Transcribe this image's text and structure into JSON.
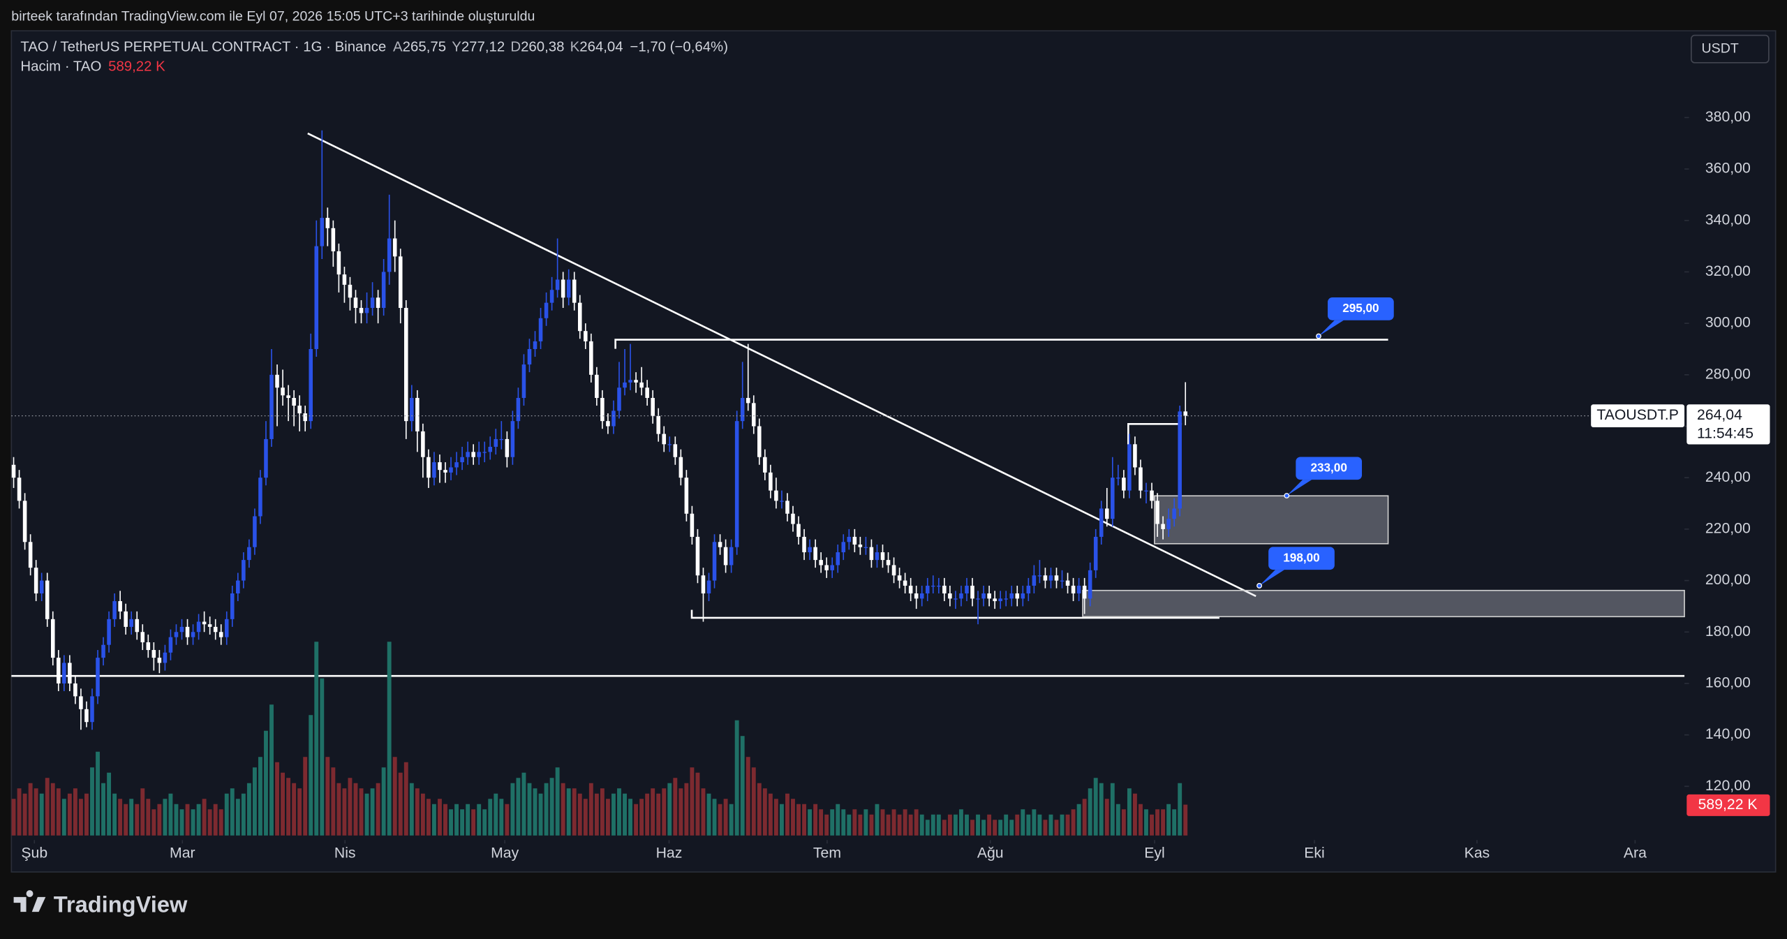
{
  "header": {
    "credit": "birteek tarafından TradingView.com ile Eyl 07, 2026 15:05 UTC+3 tarihinde oluşturuldu",
    "symbol": "TAO / TetherUS PERPETUAL CONTRACT · 1G · Binance",
    "ohlc": [
      {
        "key": "A",
        "value": "265,75"
      },
      {
        "key": "Y",
        "value": "277,12"
      },
      {
        "key": "D",
        "value": "260,38"
      },
      {
        "key": "K",
        "value": "264,04"
      }
    ],
    "change": "−1,70 (−0,64%)",
    "volume_title": "Hacim · TAO",
    "currency": "USDT",
    "brand": "TradingView"
  },
  "chart_data": {
    "type": "candlestick",
    "up_color": "#2a52e8",
    "down_color": "#ffffff",
    "volume_up_color": "#1f7066",
    "volume_down_color": "#7d2a30",
    "grid": false,
    "ylim": [
      100,
      400
    ],
    "yticks": [
      {
        "value": 120,
        "label": "120,00"
      },
      {
        "value": 140,
        "label": "140,00"
      },
      {
        "value": 160,
        "label": "160,00"
      },
      {
        "value": 180,
        "label": "180,00"
      },
      {
        "value": 200,
        "label": "200,00"
      },
      {
        "value": 220,
        "label": "220,00"
      },
      {
        "value": 240,
        "label": "240,00"
      },
      {
        "value": 260,
        "label": "260,00"
      },
      {
        "value": 280,
        "label": "280,00"
      },
      {
        "value": 300,
        "label": "300,00"
      },
      {
        "value": 320,
        "label": "320,00"
      },
      {
        "value": 340,
        "label": "340,00"
      },
      {
        "value": 360,
        "label": "360,00"
      },
      {
        "value": 380,
        "label": "380,00"
      }
    ],
    "xlim": [
      -0.4,
      298
    ],
    "xticks": [
      {
        "value": 3.7,
        "label": "Şub"
      },
      {
        "value": 30.1,
        "label": "Mar"
      },
      {
        "value": 59.1,
        "label": "Nis"
      },
      {
        "value": 87.6,
        "label": "May"
      },
      {
        "value": 116.9,
        "label": "Haz"
      },
      {
        "value": 145.1,
        "label": "Tem"
      },
      {
        "value": 174.2,
        "label": "Ağu"
      },
      {
        "value": 203.5,
        "label": "Eyl"
      },
      {
        "value": 232,
        "label": "Eki"
      },
      {
        "value": 261,
        "label": "Kas"
      },
      {
        "value": 289.2,
        "label": "Ara"
      }
    ],
    "symbol_tag": "TAOUSDT.P",
    "last_price_label": "264,04",
    "countdown": "11:54:45",
    "volume_label": "589,22 K",
    "callouts": [
      {
        "value": 295,
        "label": "295,00"
      },
      {
        "value": 233,
        "label": "233,00"
      },
      {
        "value": 198,
        "label": "198,00"
      }
    ],
    "ohlc": [
      [
        245,
        248,
        236,
        240
      ],
      [
        240,
        243,
        228,
        231
      ],
      [
        231,
        234,
        212,
        215
      ],
      [
        215,
        218,
        202,
        205
      ],
      [
        205,
        208,
        192,
        195
      ],
      [
        195,
        203,
        192,
        200
      ],
      [
        200,
        203,
        182,
        185
      ],
      [
        185,
        188,
        167,
        170
      ],
      [
        170,
        173,
        157,
        160
      ],
      [
        160,
        171,
        157,
        168
      ],
      [
        168,
        171,
        157,
        160
      ],
      [
        160,
        163,
        152,
        155
      ],
      [
        155,
        158,
        142,
        150
      ],
      [
        150,
        153,
        143,
        145
      ],
      [
        145,
        158,
        142,
        155
      ],
      [
        155,
        173,
        152,
        170
      ],
      [
        170,
        178,
        167,
        175
      ],
      [
        175,
        188,
        172,
        185
      ],
      [
        185,
        195,
        182,
        192
      ],
      [
        192,
        196,
        185,
        188
      ],
      [
        188,
        191,
        179,
        182
      ],
      [
        182,
        188,
        179,
        185
      ],
      [
        185,
        188,
        177,
        180
      ],
      [
        180,
        183,
        173,
        176
      ],
      [
        176,
        179,
        170,
        173
      ],
      [
        173,
        176,
        165,
        170
      ],
      [
        170,
        173,
        164,
        168
      ],
      [
        168,
        175,
        165,
        172
      ],
      [
        172,
        181,
        169,
        178
      ],
      [
        178,
        183,
        175,
        180
      ],
      [
        180,
        185,
        177,
        182
      ],
      [
        182,
        185,
        175,
        178
      ],
      [
        178,
        183,
        175,
        180
      ],
      [
        180,
        187,
        177,
        184
      ],
      [
        184,
        188,
        180,
        183
      ],
      [
        183,
        186,
        179,
        182
      ],
      [
        182,
        185,
        177,
        180
      ],
      [
        180,
        183,
        175,
        178
      ],
      [
        178,
        188,
        175,
        185
      ],
      [
        185,
        198,
        182,
        195
      ],
      [
        195,
        203,
        192,
        200
      ],
      [
        200,
        211,
        197,
        208
      ],
      [
        208,
        216,
        205,
        213
      ],
      [
        213,
        228,
        210,
        225
      ],
      [
        225,
        243,
        222,
        240
      ],
      [
        240,
        262,
        237,
        255
      ],
      [
        255,
        290,
        252,
        280
      ],
      [
        280,
        284,
        260,
        275
      ],
      [
        275,
        282,
        268,
        272
      ],
      [
        272,
        276,
        262,
        271
      ],
      [
        271,
        274,
        260,
        268
      ],
      [
        268,
        272,
        258,
        265
      ],
      [
        265,
        268,
        258,
        262
      ],
      [
        262,
        296,
        259,
        290
      ],
      [
        290,
        340,
        287,
        330
      ],
      [
        330,
        375,
        325,
        341
      ],
      [
        341,
        345,
        330,
        337
      ],
      [
        337,
        340,
        322,
        328
      ],
      [
        328,
        331,
        312,
        319
      ],
      [
        319,
        322,
        308,
        315
      ],
      [
        315,
        318,
        305,
        310
      ],
      [
        310,
        313,
        300,
        306
      ],
      [
        306,
        309,
        300,
        304
      ],
      [
        304,
        312,
        300,
        306
      ],
      [
        306,
        316,
        303,
        310
      ],
      [
        310,
        313,
        300,
        306
      ],
      [
        306,
        325,
        303,
        320
      ],
      [
        320,
        350,
        315,
        333
      ],
      [
        333,
        340,
        320,
        326
      ],
      [
        326,
        329,
        300,
        306
      ],
      [
        306,
        309,
        255,
        262
      ],
      [
        262,
        276,
        258,
        271
      ],
      [
        271,
        274,
        250,
        258
      ],
      [
        258,
        261,
        240,
        248
      ],
      [
        248,
        251,
        236,
        240
      ],
      [
        240,
        250,
        237,
        246
      ],
      [
        246,
        249,
        238,
        243
      ],
      [
        243,
        246,
        238,
        242
      ],
      [
        242,
        248,
        239,
        244
      ],
      [
        244,
        250,
        241,
        246
      ],
      [
        246,
        252,
        243,
        248
      ],
      [
        248,
        254,
        245,
        250
      ],
      [
        250,
        253,
        245,
        248
      ],
      [
        248,
        254,
        245,
        250
      ],
      [
        250,
        254,
        246,
        250
      ],
      [
        250,
        256,
        247,
        252
      ],
      [
        252,
        259,
        249,
        255
      ],
      [
        255,
        262,
        251,
        255
      ],
      [
        255,
        258,
        244,
        248
      ],
      [
        248,
        266,
        245,
        262
      ],
      [
        262,
        275,
        259,
        271
      ],
      [
        271,
        288,
        268,
        284
      ],
      [
        284,
        294,
        281,
        290
      ],
      [
        290,
        297,
        287,
        293
      ],
      [
        293,
        306,
        290,
        302
      ],
      [
        302,
        312,
        299,
        308
      ],
      [
        308,
        318,
        305,
        313
      ],
      [
        313,
        333,
        310,
        317
      ],
      [
        317,
        320,
        306,
        310
      ],
      [
        310,
        321,
        307,
        317
      ],
      [
        317,
        320,
        305,
        308
      ],
      [
        308,
        311,
        294,
        297
      ],
      [
        297,
        300,
        290,
        293
      ],
      [
        293,
        296,
        277,
        280
      ],
      [
        280,
        283,
        268,
        271
      ],
      [
        271,
        274,
        259,
        262
      ],
      [
        262,
        265,
        257,
        260
      ],
      [
        260,
        270,
        257,
        266
      ],
      [
        266,
        285,
        263,
        275
      ],
      [
        275,
        290,
        272,
        277
      ],
      [
        277,
        292,
        274,
        278
      ],
      [
        278,
        281,
        273,
        277
      ],
      [
        277,
        283,
        272,
        275
      ],
      [
        275,
        278,
        268,
        271
      ],
      [
        271,
        274,
        261,
        264
      ],
      [
        264,
        267,
        254,
        257
      ],
      [
        257,
        260,
        250,
        253
      ],
      [
        253,
        256,
        250,
        253
      ],
      [
        253,
        256,
        245,
        248
      ],
      [
        248,
        251,
        237,
        240
      ],
      [
        240,
        243,
        223,
        226
      ],
      [
        226,
        229,
        214,
        217
      ],
      [
        217,
        220,
        199,
        202
      ],
      [
        202,
        205,
        184,
        195
      ],
      [
        195,
        203,
        192,
        200
      ],
      [
        200,
        218,
        197,
        215
      ],
      [
        215,
        218,
        210,
        213
      ],
      [
        213,
        216,
        203,
        206
      ],
      [
        206,
        216,
        203,
        213
      ],
      [
        213,
        266,
        210,
        262
      ],
      [
        262,
        285,
        259,
        271
      ],
      [
        271,
        292,
        266,
        269
      ],
      [
        269,
        272,
        257,
        260
      ],
      [
        260,
        263,
        245,
        248
      ],
      [
        248,
        251,
        239,
        242
      ],
      [
        242,
        245,
        232,
        235
      ],
      [
        235,
        240,
        228,
        231
      ],
      [
        231,
        235,
        228,
        231
      ],
      [
        231,
        234,
        223,
        226
      ],
      [
        226,
        229,
        219,
        222
      ],
      [
        222,
        225,
        214,
        217
      ],
      [
        217,
        220,
        208,
        211
      ],
      [
        211,
        216,
        208,
        213
      ],
      [
        213,
        216,
        205,
        208
      ],
      [
        208,
        211,
        203,
        206
      ],
      [
        206,
        209,
        201,
        204
      ],
      [
        204,
        209,
        201,
        206
      ],
      [
        206,
        214,
        203,
        211
      ],
      [
        211,
        218,
        208,
        215
      ],
      [
        215,
        220,
        212,
        217
      ],
      [
        217,
        220,
        211,
        214
      ],
      [
        214,
        217,
        210,
        213
      ],
      [
        213,
        217,
        210,
        213
      ],
      [
        213,
        216,
        205,
        208
      ],
      [
        208,
        214,
        205,
        211
      ],
      [
        211,
        214,
        205,
        208
      ],
      [
        208,
        211,
        203,
        206
      ],
      [
        206,
        209,
        199,
        202
      ],
      [
        202,
        205,
        197,
        200
      ],
      [
        200,
        203,
        195,
        198
      ],
      [
        198,
        201,
        192,
        195
      ],
      [
        195,
        198,
        189,
        193
      ],
      [
        193,
        198,
        190,
        195
      ],
      [
        195,
        201,
        192,
        198
      ],
      [
        198,
        202,
        195,
        198
      ],
      [
        198,
        201,
        195,
        198
      ],
      [
        198,
        201,
        192,
        195
      ],
      [
        195,
        198,
        190,
        193
      ],
      [
        193,
        196,
        189,
        193
      ],
      [
        193,
        198,
        190,
        195
      ],
      [
        195,
        201,
        192,
        198
      ],
      [
        198,
        201,
        190,
        193
      ],
      [
        193,
        196,
        183,
        193
      ],
      [
        193,
        198,
        190,
        195
      ],
      [
        195,
        198,
        190,
        193
      ],
      [
        193,
        196,
        189,
        192
      ],
      [
        192,
        196,
        189,
        193
      ],
      [
        193,
        196,
        190,
        193
      ],
      [
        193,
        198,
        190,
        195
      ],
      [
        195,
        198,
        190,
        193
      ],
      [
        193,
        198,
        190,
        195
      ],
      [
        195,
        201,
        192,
        198
      ],
      [
        198,
        206,
        195,
        202
      ],
      [
        202,
        208,
        199,
        202
      ],
      [
        202,
        205,
        197,
        200
      ],
      [
        200,
        205,
        197,
        202
      ],
      [
        202,
        205,
        197,
        200
      ],
      [
        200,
        204,
        197,
        200
      ],
      [
        200,
        203,
        195,
        198
      ],
      [
        198,
        201,
        192,
        195
      ],
      [
        195,
        201,
        192,
        198
      ],
      [
        198,
        201,
        187,
        193
      ],
      [
        193,
        207,
        190,
        204
      ],
      [
        204,
        220,
        201,
        217
      ],
      [
        217,
        231,
        214,
        228
      ],
      [
        228,
        236,
        221,
        224
      ],
      [
        224,
        248,
        221,
        240
      ],
      [
        240,
        245,
        237,
        240
      ],
      [
        240,
        243,
        232,
        235
      ],
      [
        235,
        257,
        232,
        253
      ],
      [
        253,
        256,
        241,
        244
      ],
      [
        244,
        247,
        232,
        235
      ],
      [
        235,
        238,
        230,
        235
      ],
      [
        235,
        238,
        228,
        231
      ],
      [
        231,
        234,
        217,
        222
      ],
      [
        222,
        225,
        216,
        220
      ],
      [
        220,
        228,
        217,
        224
      ],
      [
        224,
        232,
        221,
        228
      ],
      [
        228,
        268,
        225,
        265.75
      ],
      [
        265.75,
        277.12,
        260.38,
        264.04
      ]
    ],
    "volume": [
      700,
      900,
      800,
      1000,
      900,
      800,
      1100,
      1000,
      900,
      700,
      800,
      900,
      700,
      800,
      1300,
      1600,
      1000,
      1200,
      800,
      700,
      600,
      700,
      600,
      900,
      700,
      500,
      600,
      700,
      800,
      600,
      500,
      600,
      500,
      600,
      700,
      500,
      600,
      500,
      800,
      900,
      700,
      800,
      1000,
      1300,
      1500,
      2000,
      2500,
      1400,
      1200,
      1100,
      1000,
      900,
      1500,
      2300,
      3700,
      3000,
      1500,
      1300,
      1000,
      900,
      1100,
      1000,
      900,
      800,
      900,
      1000,
      1300,
      3700,
      1500,
      1200,
      1400,
      1000,
      900,
      800,
      700,
      600,
      700,
      600,
      500,
      600,
      500,
      600,
      500,
      600,
      500,
      700,
      800,
      700,
      600,
      1000,
      1100,
      1200,
      1000,
      900,
      800,
      1000,
      1100,
      1300,
      1000,
      900,
      900,
      800,
      700,
      1000,
      800,
      900,
      700,
      800,
      900,
      800,
      700,
      600,
      700,
      800,
      900,
      800,
      900,
      1000,
      1100,
      900,
      1000,
      1300,
      1200,
      900,
      800,
      700,
      600,
      700,
      600,
      2200,
      1900,
      1500,
      1300,
      1000,
      900,
      800,
      700,
      600,
      800,
      700,
      600,
      600,
      500,
      600,
      500,
      400,
      500,
      600,
      500,
      400,
      500,
      400,
      500,
      400,
      600,
      500,
      400,
      500,
      400,
      500,
      400,
      500,
      400,
      300,
      400,
      400,
      300,
      400,
      400,
      500,
      400,
      300,
      400,
      300,
      400,
      300,
      300,
      400,
      300,
      400,
      500,
      400,
      500,
      400,
      300,
      400,
      300,
      400,
      400,
      500,
      600,
      700,
      900,
      1100,
      1000,
      700,
      1000,
      600,
      500,
      900,
      800,
      600,
      500,
      400,
      500,
      500,
      600,
      500,
      1000,
      589.22
    ]
  }
}
